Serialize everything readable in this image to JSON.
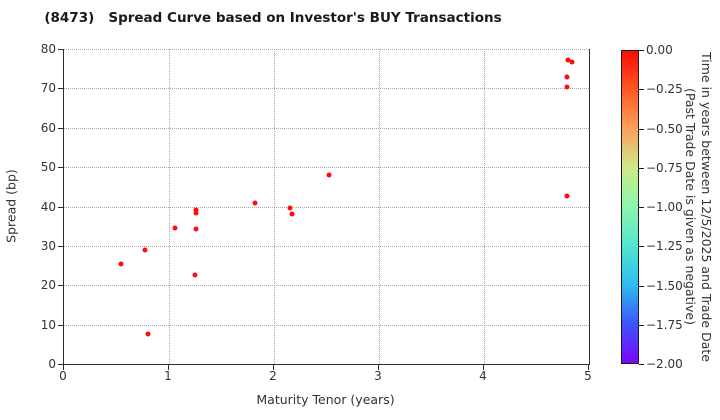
{
  "title": "(8473)   Spread Curve based on Investor's BUY Transactions",
  "chart_data": {
    "type": "scatter",
    "title": "(8473)   Spread Curve based on Investor's BUY Transactions",
    "xlabel": "Maturity Tenor (years)",
    "ylabel": "Spread (bp)",
    "xlim": [
      0,
      5
    ],
    "ylim": [
      0,
      80
    ],
    "xticks": [
      0,
      1,
      2,
      3,
      4,
      5
    ],
    "yticks": [
      0,
      10,
      20,
      30,
      40,
      50,
      60,
      70,
      80
    ],
    "grid": true,
    "grid_style": "dotted",
    "legend_position": "none",
    "point_color": "#fa0f0a",
    "points": [
      {
        "x": 0.54,
        "y": 25.3,
        "c": 0.0
      },
      {
        "x": 0.77,
        "y": 29.0,
        "c": 0.0
      },
      {
        "x": 0.8,
        "y": 7.7,
        "c": 0.0
      },
      {
        "x": 1.06,
        "y": 34.5,
        "c": 0.0
      },
      {
        "x": 1.26,
        "y": 39.2,
        "c": 0.0
      },
      {
        "x": 1.26,
        "y": 38.3,
        "c": 0.0
      },
      {
        "x": 1.26,
        "y": 34.2,
        "c": 0.0
      },
      {
        "x": 1.25,
        "y": 22.6,
        "c": 0.0
      },
      {
        "x": 1.82,
        "y": 40.8,
        "c": 0.0
      },
      {
        "x": 2.15,
        "y": 39.7,
        "c": 0.0
      },
      {
        "x": 2.17,
        "y": 38.2,
        "c": 0.0
      },
      {
        "x": 2.52,
        "y": 48.0,
        "c": 0.0
      },
      {
        "x": 4.8,
        "y": 77.1,
        "c": 0.0
      },
      {
        "x": 4.84,
        "y": 76.6,
        "c": 0.0
      },
      {
        "x": 4.79,
        "y": 73.0,
        "c": 0.0
      },
      {
        "x": 4.79,
        "y": 70.4,
        "c": 0.0
      },
      {
        "x": 4.79,
        "y": 42.6,
        "c": 0.0
      }
    ],
    "colorbar": {
      "label_line1": "Time in years between 12/5/2025 and Trade Date",
      "label_line2": "(Past Trade Date is given as negative)",
      "tick_labels": [
        "0.00",
        "−0.25",
        "−0.50",
        "−0.75",
        "−1.00",
        "−1.25",
        "−1.50",
        "−1.75",
        "−2.00"
      ],
      "range": [
        0.0,
        -2.0
      ],
      "gradient_top_to_bottom": [
        "#fb0b05",
        "#fe5a22",
        "#fda05c",
        "#cdea86",
        "#8bf5ad",
        "#53e5cf",
        "#2fbbf0",
        "#3b55fb",
        "#7d05ff"
      ]
    }
  }
}
